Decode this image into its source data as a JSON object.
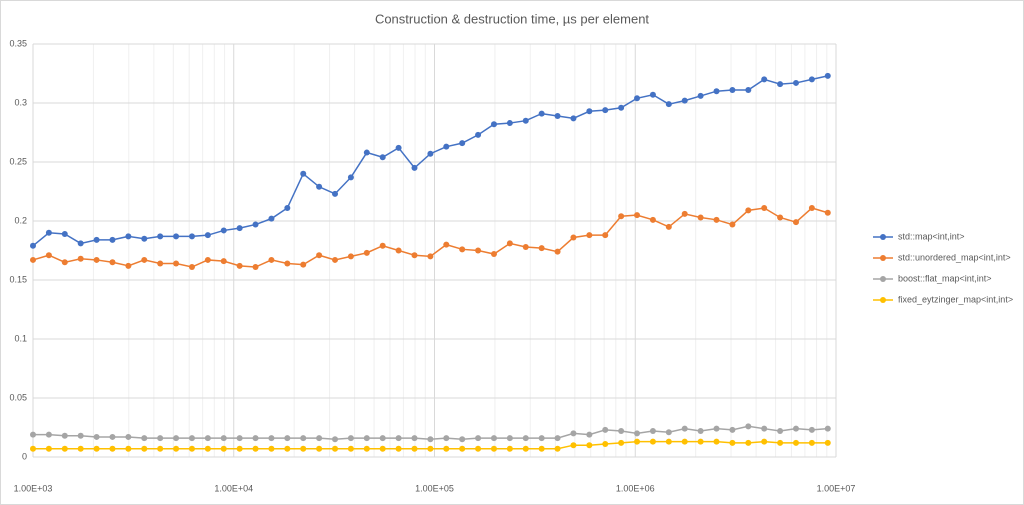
{
  "chart_data": {
    "type": "line",
    "title": "Construction & destruction time, µs per element",
    "x": [
      1000,
      1200,
      1440,
      1728,
      2074,
      2488,
      2986,
      3583,
      4300,
      5160,
      6192,
      7430,
      8916,
      10699,
      12839,
      15407,
      18488,
      22186,
      26623,
      31948,
      38338,
      46005,
      55206,
      66247,
      79497,
      95396,
      114475,
      137371,
      164845,
      197814,
      237376,
      284852,
      341822,
      410186,
      492224,
      590668,
      708802,
      850562,
      1020675,
      1224810,
      1469772,
      1763726,
      2116471,
      2539765,
      3047718,
      3657262,
      4388714,
      5266457,
      6319749,
      7583698,
      9100438
    ],
    "series": [
      {
        "name": "std::map<int,int>",
        "color": "#4472c4",
        "values": [
          0.179,
          0.19,
          0.189,
          0.181,
          0.184,
          0.184,
          0.187,
          0.185,
          0.187,
          0.187,
          0.187,
          0.188,
          0.192,
          0.194,
          0.197,
          0.202,
          0.211,
          0.24,
          0.229,
          0.223,
          0.237,
          0.258,
          0.254,
          0.262,
          0.245,
          0.257,
          0.263,
          0.266,
          0.273,
          0.282,
          0.283,
          0.285,
          0.291,
          0.289,
          0.287,
          0.293,
          0.294,
          0.296,
          0.304,
          0.307,
          0.299,
          0.302,
          0.306,
          0.31,
          0.311,
          0.311,
          0.32,
          0.316,
          0.317,
          0.32,
          0.323
        ]
      },
      {
        "name": "std::unordered_map<int,int>",
        "color": "#ed7d31",
        "values": [
          0.167,
          0.171,
          0.165,
          0.168,
          0.167,
          0.165,
          0.162,
          0.167,
          0.164,
          0.164,
          0.161,
          0.167,
          0.166,
          0.162,
          0.161,
          0.167,
          0.164,
          0.163,
          0.171,
          0.167,
          0.17,
          0.173,
          0.179,
          0.175,
          0.171,
          0.17,
          0.18,
          0.176,
          0.175,
          0.172,
          0.181,
          0.178,
          0.177,
          0.174,
          0.186,
          0.188,
          0.188,
          0.204,
          0.205,
          0.201,
          0.195,
          0.206,
          0.203,
          0.201,
          0.197,
          0.209,
          0.211,
          0.203,
          0.199,
          0.211,
          0.207
        ]
      },
      {
        "name": "boost::flat_map<int,int>",
        "color": "#a5a5a5",
        "values": [
          0.019,
          0.019,
          0.018,
          0.018,
          0.017,
          0.017,
          0.017,
          0.016,
          0.016,
          0.016,
          0.016,
          0.016,
          0.016,
          0.016,
          0.016,
          0.016,
          0.016,
          0.016,
          0.016,
          0.015,
          0.016,
          0.016,
          0.016,
          0.016,
          0.016,
          0.015,
          0.016,
          0.015,
          0.016,
          0.016,
          0.016,
          0.016,
          0.016,
          0.016,
          0.02,
          0.019,
          0.023,
          0.022,
          0.02,
          0.022,
          0.021,
          0.024,
          0.022,
          0.024,
          0.023,
          0.026,
          0.024,
          0.022,
          0.024,
          0.023,
          0.024
        ]
      },
      {
        "name": "fixed_eytzinger_map<int,int>",
        "color": "#ffc000",
        "values": [
          0.007,
          0.007,
          0.007,
          0.007,
          0.007,
          0.007,
          0.007,
          0.007,
          0.007,
          0.007,
          0.007,
          0.007,
          0.007,
          0.007,
          0.007,
          0.007,
          0.007,
          0.007,
          0.007,
          0.007,
          0.007,
          0.007,
          0.007,
          0.007,
          0.007,
          0.007,
          0.007,
          0.007,
          0.007,
          0.007,
          0.007,
          0.007,
          0.007,
          0.007,
          0.01,
          0.01,
          0.011,
          0.012,
          0.013,
          0.013,
          0.013,
          0.013,
          0.013,
          0.013,
          0.012,
          0.012,
          0.013,
          0.012,
          0.012,
          0.012,
          0.012
        ]
      }
    ],
    "xlog": true,
    "xlim": [
      1000,
      10000000
    ],
    "xticks": [
      {
        "value": 1000,
        "label": "1.00E+03"
      },
      {
        "value": 10000,
        "label": "1.00E+04"
      },
      {
        "value": 100000,
        "label": "1.00E+05"
      },
      {
        "value": 1000000,
        "label": "1.00E+06"
      },
      {
        "value": 10000000,
        "label": "1.00E+07"
      }
    ],
    "ylim": [
      0,
      0.35
    ],
    "yticks": [
      0,
      0.05,
      0.1,
      0.15,
      0.2,
      0.25,
      0.3,
      0.35
    ],
    "grid": true,
    "legend": "right"
  }
}
